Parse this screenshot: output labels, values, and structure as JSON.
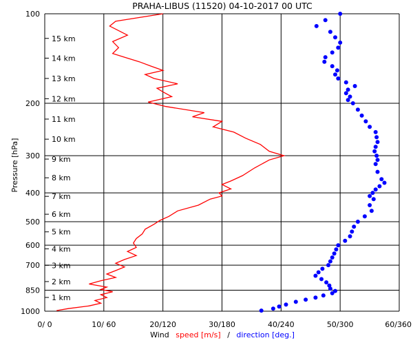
{
  "chart_data": {
    "type": "line",
    "title": "PRAHA-LIBUS (11520)    04-10-2017   00   UTC",
    "ylabel": "Pressure [hPa]",
    "xlabel_parts": {
      "wind": "Wind",
      "speed": "speed [m/s]",
      "slash": "/",
      "direction": "direction [deg.]"
    },
    "x_ticks": [
      "0/  0",
      "10/ 60",
      "20/120",
      "30/180",
      "40/240",
      "50/300",
      "60/360"
    ],
    "y_ticks": [
      "100",
      "200",
      "300",
      "400",
      "500",
      "600",
      "700",
      "850",
      "1000"
    ],
    "height_labels": [
      "15 km",
      "14 km",
      "13 km",
      "12 km",
      "11 km",
      "10 km",
      "9 km",
      "8 km",
      "7 km",
      "6 km",
      "5 km",
      "4 km",
      "3 km",
      "2 km",
      "1 km"
    ],
    "ylim": [
      1000,
      100
    ],
    "xlim_speed": [
      0,
      60
    ],
    "xlim_direction": [
      0,
      360
    ],
    "colors": {
      "speed": "#ff0000",
      "direction": "#0000ff",
      "grid": "#000000"
    },
    "series": [
      {
        "name": "speed [m/s]",
        "style": "line",
        "points": [
          [
            100,
            20.0
          ],
          [
            106,
            12.0
          ],
          [
            110,
            11.0
          ],
          [
            118,
            14.0
          ],
          [
            124,
            11.5
          ],
          [
            130,
            12.5
          ],
          [
            136,
            11.5
          ],
          [
            140,
            13.5
          ],
          [
            145,
            16.0
          ],
          [
            150,
            18.0
          ],
          [
            155,
            20.0
          ],
          [
            160,
            17.0
          ],
          [
            165,
            18.5
          ],
          [
            172,
            22.5
          ],
          [
            178,
            19.0
          ],
          [
            183,
            20.0
          ],
          [
            190,
            21.5
          ],
          [
            198,
            17.5
          ],
          [
            205,
            20.5
          ],
          [
            215,
            27.0
          ],
          [
            222,
            25.0
          ],
          [
            230,
            30.0
          ],
          [
            240,
            28.5
          ],
          [
            250,
            32.0
          ],
          [
            262,
            34.0
          ],
          [
            275,
            36.5
          ],
          [
            290,
            38.0
          ],
          [
            300,
            40.5
          ],
          [
            310,
            38.0
          ],
          [
            330,
            35.5
          ],
          [
            350,
            33.5
          ],
          [
            365,
            31.5
          ],
          [
            375,
            30.0
          ],
          [
            388,
            31.5
          ],
          [
            400,
            29.5
          ],
          [
            410,
            30.0
          ],
          [
            420,
            28.0
          ],
          [
            440,
            26.0
          ],
          [
            460,
            22.5
          ],
          [
            480,
            21.0
          ],
          [
            495,
            19.5
          ],
          [
            510,
            18.5
          ],
          [
            530,
            17.0
          ],
          [
            550,
            16.5
          ],
          [
            570,
            15.5
          ],
          [
            590,
            15.0
          ],
          [
            610,
            15.5
          ],
          [
            630,
            14.0
          ],
          [
            650,
            15.5
          ],
          [
            670,
            13.5
          ],
          [
            690,
            12.0
          ],
          [
            710,
            13.5
          ],
          [
            730,
            12.0
          ],
          [
            750,
            10.5
          ],
          [
            770,
            12.0
          ],
          [
            790,
            9.5
          ],
          [
            810,
            7.5
          ],
          [
            830,
            10.5
          ],
          [
            845,
            9.5
          ],
          [
            860,
            11.5
          ],
          [
            880,
            9.5
          ],
          [
            900,
            10.5
          ],
          [
            920,
            8.5
          ],
          [
            940,
            9.5
          ],
          [
            960,
            7.5
          ],
          [
            980,
            4.0
          ],
          [
            995,
            2.0
          ]
        ]
      },
      {
        "name": "direction [deg.]",
        "style": "dots",
        "points": [
          [
            100,
            300
          ],
          [
            105,
            285
          ],
          [
            110,
            276
          ],
          [
            115,
            290
          ],
          [
            120,
            295
          ],
          [
            125,
            300
          ],
          [
            130,
            298
          ],
          [
            135,
            292
          ],
          [
            140,
            285
          ],
          [
            145,
            284
          ],
          [
            150,
            292
          ],
          [
            155,
            297
          ],
          [
            160,
            295
          ],
          [
            165,
            298
          ],
          [
            170,
            306
          ],
          [
            175,
            315
          ],
          [
            180,
            308
          ],
          [
            185,
            306
          ],
          [
            190,
            310
          ],
          [
            195,
            308
          ],
          [
            200,
            313
          ],
          [
            210,
            318
          ],
          [
            220,
            322
          ],
          [
            230,
            326
          ],
          [
            240,
            330
          ],
          [
            250,
            336
          ],
          [
            260,
            337
          ],
          [
            270,
            338
          ],
          [
            280,
            336
          ],
          [
            290,
            335
          ],
          [
            300,
            337
          ],
          [
            310,
            338
          ],
          [
            320,
            336
          ],
          [
            340,
            338
          ],
          [
            360,
            342
          ],
          [
            370,
            345
          ],
          [
            380,
            340
          ],
          [
            390,
            336
          ],
          [
            400,
            333
          ],
          [
            410,
            330
          ],
          [
            420,
            334
          ],
          [
            440,
            330
          ],
          [
            460,
            332
          ],
          [
            480,
            325
          ],
          [
            500,
            318
          ],
          [
            520,
            314
          ],
          [
            540,
            312
          ],
          [
            560,
            310
          ],
          [
            580,
            305
          ],
          [
            600,
            298
          ],
          [
            620,
            296
          ],
          [
            640,
            294
          ],
          [
            660,
            292
          ],
          [
            680,
            290
          ],
          [
            700,
            288
          ],
          [
            720,
            282
          ],
          [
            740,
            278
          ],
          [
            760,
            275
          ],
          [
            780,
            281
          ],
          [
            800,
            286
          ],
          [
            820,
            289
          ],
          [
            840,
            290
          ],
          [
            855,
            295
          ],
          [
            870,
            292
          ],
          [
            885,
            283
          ],
          [
            900,
            275
          ],
          [
            915,
            265
          ],
          [
            930,
            255
          ],
          [
            950,
            245
          ],
          [
            965,
            238
          ],
          [
            980,
            232
          ],
          [
            995,
            220
          ]
        ]
      }
    ]
  }
}
